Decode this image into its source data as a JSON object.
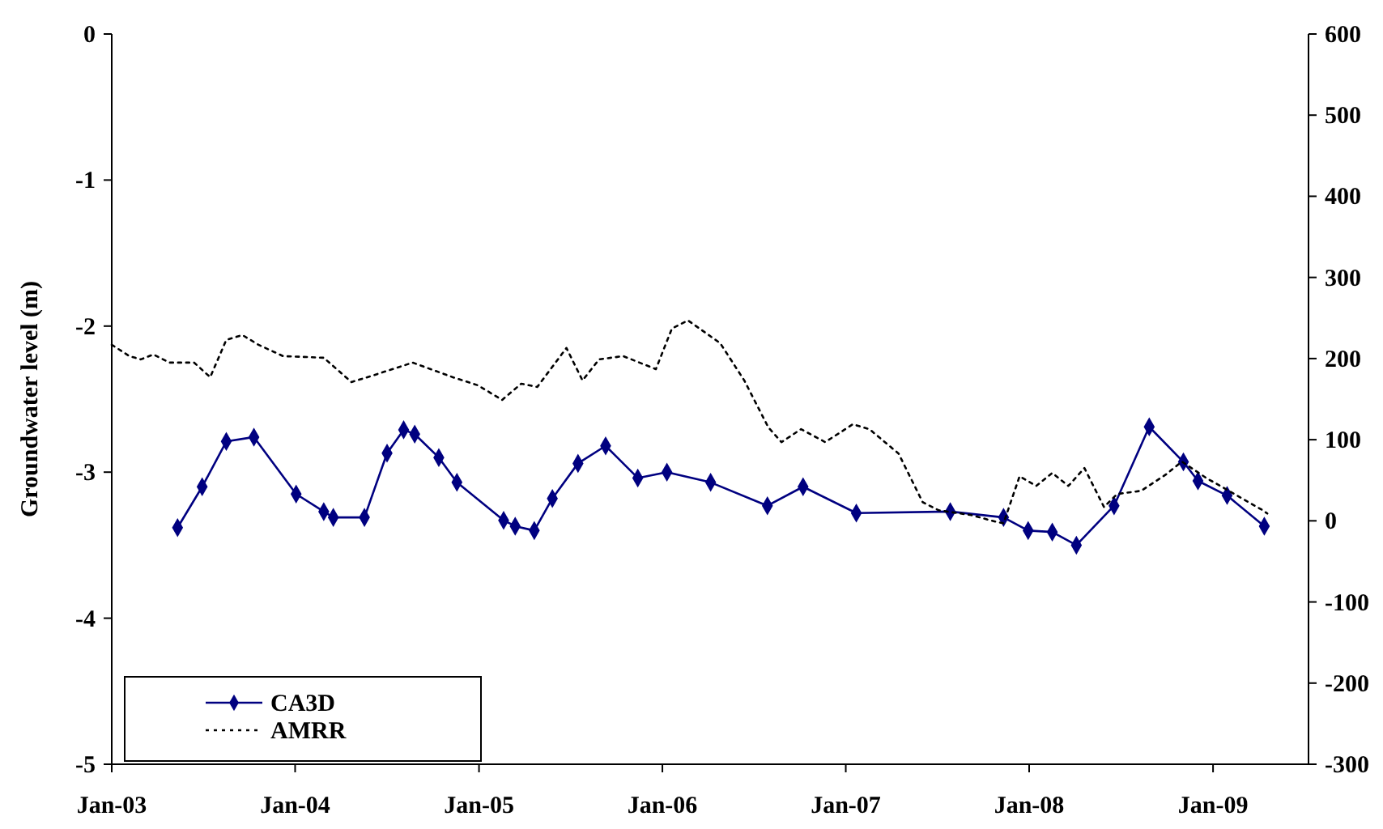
{
  "chart_data": {
    "type": "line",
    "ylabel": "Groundwater level (m)",
    "xlim": [
      "2003-01-01",
      "2009-07-10"
    ],
    "xticks": [
      {
        "value": "2003-01-01",
        "label": "Jan-03"
      },
      {
        "value": "2004-01-01",
        "label": "Jan-04"
      },
      {
        "value": "2005-01-01",
        "label": "Jan-05"
      },
      {
        "value": "2006-01-01",
        "label": "Jan-06"
      },
      {
        "value": "2007-01-01",
        "label": "Jan-07"
      },
      {
        "value": "2008-01-01",
        "label": "Jan-08"
      },
      {
        "value": "2009-01-01",
        "label": "Jan-09"
      }
    ],
    "ylim": [
      -5,
      0
    ],
    "yticks": [
      -5,
      -4,
      -3,
      -2,
      -1,
      0
    ],
    "y2lim": [
      -300,
      600
    ],
    "y2ticks": [
      -300,
      -200,
      -100,
      0,
      100,
      200,
      300,
      400,
      500,
      600
    ],
    "grid": false,
    "legend": "bottom left",
    "series": [
      {
        "name": "CA3D",
        "color": "#000080",
        "marker": "diamond",
        "line_style": "solid",
        "x": [
          "2003-05-12",
          "2003-06-30",
          "2003-08-17",
          "2003-10-11",
          "2004-01-03",
          "2004-02-27",
          "2004-03-17",
          "2004-05-18",
          "2004-07-02",
          "2004-08-04",
          "2004-08-26",
          "2004-10-13",
          "2004-11-18",
          "2005-02-19",
          "2005-03-14",
          "2005-04-21",
          "2005-05-27",
          "2005-07-17",
          "2005-09-10",
          "2005-11-13",
          "2006-01-10",
          "2006-04-07",
          "2006-07-29",
          "2006-10-08",
          "2007-01-22",
          "2007-07-28",
          "2007-11-11",
          "2007-12-30",
          "2008-02-16",
          "2008-04-04",
          "2008-06-18",
          "2008-08-27",
          "2008-11-03",
          "2008-12-02",
          "2009-01-29",
          "2009-04-13"
        ],
        "values": [
          -3.38,
          -3.1,
          -2.79,
          -2.76,
          -3.15,
          -3.27,
          -3.31,
          -3.31,
          -2.87,
          -2.71,
          -2.74,
          -2.9,
          -3.07,
          -3.33,
          -3.37,
          -3.4,
          -3.18,
          -2.94,
          -2.82,
          -3.04,
          -3.0,
          -3.07,
          -3.23,
          -3.1,
          -3.28,
          -3.27,
          -3.31,
          -3.4,
          -3.41,
          -3.5,
          -3.23,
          -2.69,
          -2.93,
          -3.06,
          -3.16,
          -3.37
        ]
      },
      {
        "name": "AMRR",
        "color": "#000000",
        "axis": "y2",
        "marker": "none",
        "line_style": "dotted",
        "x": [
          "2003-01-01",
          "2003-02-05",
          "2003-02-28",
          "2003-03-25",
          "2003-04-26",
          "2003-06-14",
          "2003-07-16",
          "2003-08-17",
          "2003-09-18",
          "2003-10-20",
          "2003-12-08",
          "2004-02-27",
          "2004-04-22",
          "2004-06-03",
          "2004-08-22",
          "2004-11-10",
          "2004-12-30",
          "2005-02-16",
          "2005-03-26",
          "2005-04-27",
          "2005-06-24",
          "2005-07-26",
          "2005-08-28",
          "2005-10-15",
          "2005-12-19",
          "2006-01-20",
          "2006-02-21",
          "2006-04-26",
          "2006-06-13",
          "2006-07-31",
          "2006-08-26",
          "2006-10-04",
          "2006-11-21",
          "2007-01-15",
          "2007-02-17",
          "2007-04-16",
          "2007-06-03",
          "2007-07-05",
          "2007-09-08",
          "2007-10-26",
          "2007-11-11",
          "2007-12-13",
          "2008-01-15",
          "2008-02-16",
          "2008-03-19",
          "2008-04-20",
          "2008-05-29",
          "2008-06-24",
          "2008-08-11",
          "2008-09-29",
          "2008-10-31",
          "2008-12-18",
          "2009-04-10",
          "2009-04-19"
        ],
        "values": [
          217,
          203,
          199,
          205,
          195,
          195,
          177,
          223,
          229,
          217,
          203,
          201,
          171,
          179,
          195,
          177,
          167,
          149,
          169,
          165,
          213,
          173,
          199,
          203,
          187,
          237,
          247,
          219,
          173,
          115,
          97,
          113,
          97,
          119,
          113,
          83,
          23,
          13,
          7,
          -1,
          -3,
          55,
          43,
          59,
          43,
          65,
          17,
          33,
          37,
          57,
          73,
          53,
          13,
          9
        ]
      }
    ]
  }
}
